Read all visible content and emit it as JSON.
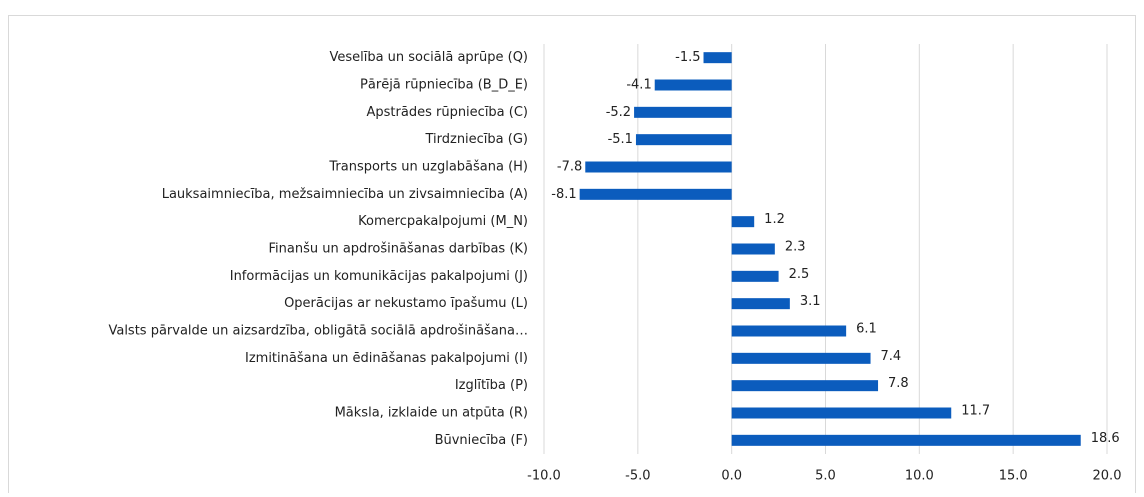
{
  "chart_data": {
    "type": "bar",
    "orientation": "horizontal",
    "categories": [
      "Veselība un sociālā aprūpe (Q)",
      "Pārējā rūpniecība (B_D_E)",
      "Apstrādes rūpniecība (C)",
      "Tirdzniecība (G)",
      "Transports un uzglabāšana (H)",
      "Lauksaimniecība, mežsaimniecība un zivsaimniecība (A)",
      "Komercpakalpojumi (M_N)",
      "Finanšu un apdrošināšanas darbības (K)",
      "Informācijas un komunikācijas pakalpojumi (J)",
      "Operācijas ar nekustamo īpašumu (L)",
      "Valsts pārvalde un aizsardzība, obligātā sociālā apdrošināšana…",
      "Izmitināšana un ēdināšanas pakalpojumi (I)",
      "Izglītība (P)",
      "Māksla, izklaide un atpūta (R)",
      "Būvniecība (F)"
    ],
    "values": [
      -1.5,
      -4.1,
      -5.2,
      -5.1,
      -7.8,
      -8.1,
      1.2,
      2.3,
      2.5,
      3.1,
      6.1,
      7.4,
      7.8,
      11.7,
      18.6
    ],
    "color": "#0b5cbd",
    "xlim": [
      -10,
      20
    ],
    "xticks": [
      {
        "value": -10,
        "label": "-10.0"
      },
      {
        "value": -5,
        "label": "-5.0"
      },
      {
        "value": 0,
        "label": "0.0"
      },
      {
        "value": 5,
        "label": "5.0"
      },
      {
        "value": 10,
        "label": "10.0"
      },
      {
        "value": 15,
        "label": "15.0"
      },
      {
        "value": 20,
        "label": "20.0"
      }
    ],
    "grid": true
  }
}
